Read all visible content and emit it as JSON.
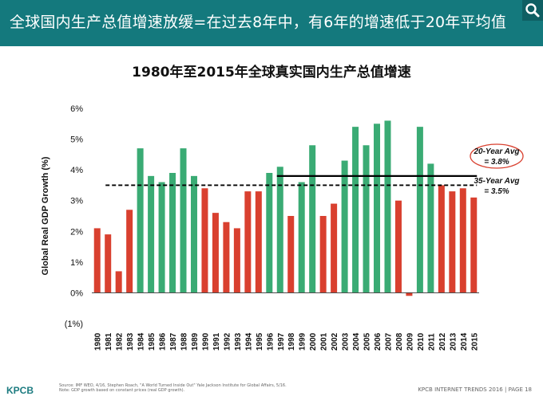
{
  "banner": {
    "title": "全球国内生产总值增速放缓=在过去8年中，有6年的增速低于20年平均值",
    "search_icon": "search-icon"
  },
  "footer": {
    "source_line1": "Source: IMF WEO, 4/16, Stephen Roach, \"A World Turned Inside Out\" Yale Jackson Institute for Global Affairs, 5/16.",
    "source_line2": "Note: GDP growth based on constant prices (real GDP growth).",
    "logo": "KPCB",
    "page_label": "KPCB INTERNET TRENDS 2016  |  PAGE 18"
  },
  "colors": {
    "banner": "#14797d",
    "green": "#3aab74",
    "red": "#d9402f",
    "avg20": "#000000"
  },
  "chart_data": {
    "type": "bar",
    "title": "1980年至2015年全球真实国内生产总值增速",
    "ylabel": "Global Real GDP Growth (%)",
    "xlabel": "",
    "ylim": [
      -1,
      6
    ],
    "yticks": [
      -1,
      0,
      1,
      2,
      3,
      4,
      5,
      6
    ],
    "ytick_labels": [
      "(1%)",
      "0%",
      "1%",
      "2%",
      "3%",
      "4%",
      "5%",
      "6%"
    ],
    "grid": false,
    "categories": [
      "1980",
      "1981",
      "1982",
      "1983",
      "1984",
      "1985",
      "1986",
      "1987",
      "1988",
      "1989",
      "1990",
      "1991",
      "1992",
      "1993",
      "1994",
      "1995",
      "1996",
      "1997",
      "1998",
      "1999",
      "2000",
      "2001",
      "2002",
      "2003",
      "2004",
      "2005",
      "2006",
      "2007",
      "2008",
      "2009",
      "2010",
      "2011",
      "2012",
      "2013",
      "2014",
      "2015"
    ],
    "values": [
      2.1,
      1.9,
      0.7,
      2.7,
      4.7,
      3.8,
      3.6,
      3.9,
      4.7,
      3.8,
      3.4,
      2.6,
      2.3,
      2.1,
      3.3,
      3.3,
      3.9,
      4.1,
      2.5,
      3.6,
      4.8,
      2.5,
      2.9,
      4.3,
      5.4,
      4.8,
      5.5,
      5.6,
      3.0,
      -0.1,
      5.4,
      4.2,
      3.5,
      3.3,
      3.4,
      3.1
    ],
    "bar_colors": [
      "red",
      "red",
      "red",
      "red",
      "green",
      "green",
      "green",
      "green",
      "green",
      "green",
      "red",
      "red",
      "red",
      "red",
      "red",
      "red",
      "green",
      "green",
      "red",
      "green",
      "green",
      "red",
      "red",
      "green",
      "green",
      "green",
      "green",
      "green",
      "red",
      "red",
      "green",
      "green",
      "red",
      "red",
      "red",
      "red"
    ],
    "reference_lines": [
      {
        "name": "20-Year Avg",
        "value": 3.8,
        "label_line1": "20-Year Avg",
        "label_line2": "= 3.8%",
        "style": "solid",
        "from": "1997",
        "to": "2015"
      },
      {
        "name": "35-Year Avg",
        "value": 3.5,
        "label_line1": "35-Year Avg",
        "label_line2": "= 3.5%",
        "style": "dashed",
        "from": "1981",
        "to": "2015"
      }
    ]
  }
}
